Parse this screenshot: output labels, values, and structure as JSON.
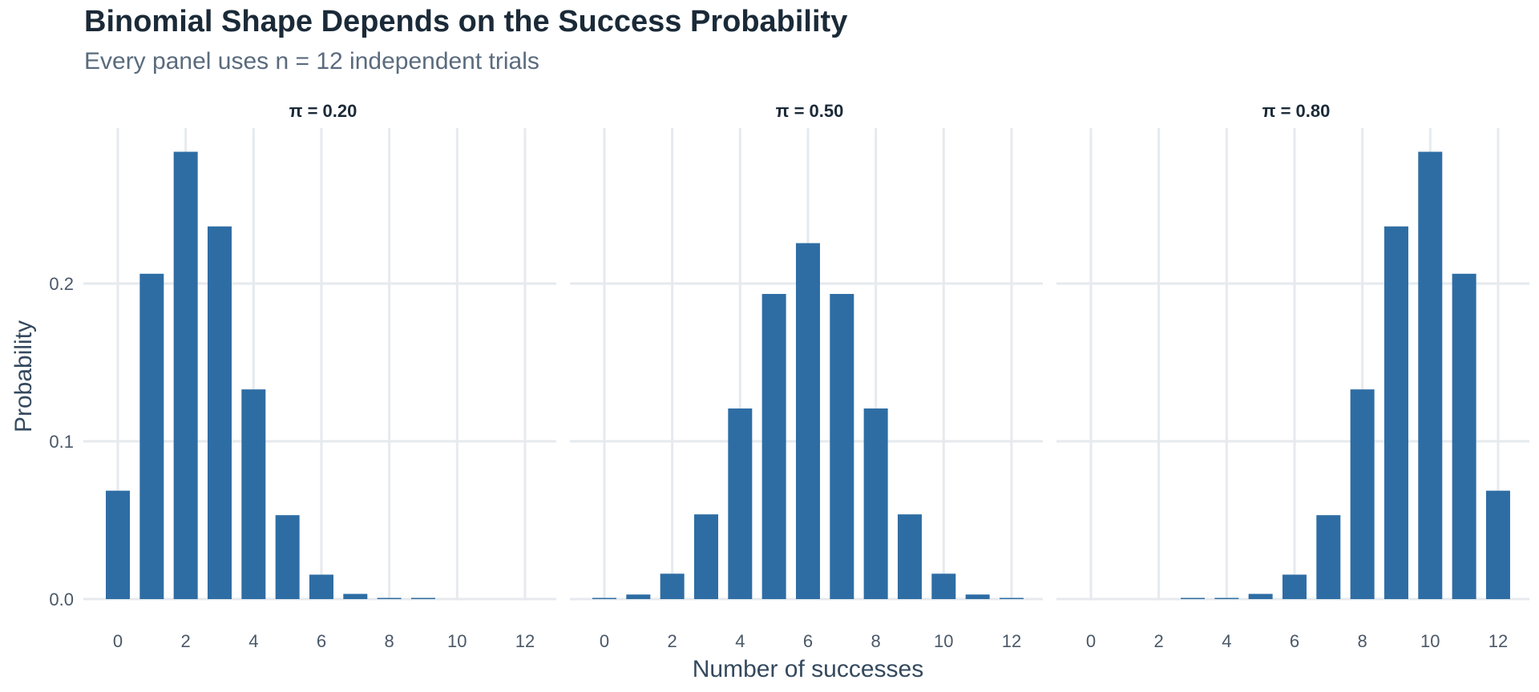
{
  "chart_data": {
    "type": "bar",
    "title": "Binomial Shape Depends on the Success Probability",
    "subtitle": "Every panel uses n = 12 independent trials",
    "xlabel": "Number of successes",
    "ylabel": "Probability",
    "x_ticks": [
      "0",
      "2",
      "4",
      "6",
      "8",
      "10",
      "12"
    ],
    "y_ticks": [
      "0.0",
      "0.1",
      "0.2"
    ],
    "ylim": [
      0,
      0.285
    ],
    "grid": true,
    "bar_color": "#2e6da4",
    "categories": [
      0,
      1,
      2,
      3,
      4,
      5,
      6,
      7,
      8,
      9,
      10,
      11,
      12
    ],
    "panels": [
      {
        "label": "π = 0.20",
        "values": [
          0.0687,
          0.2062,
          0.2835,
          0.2362,
          0.1329,
          0.0532,
          0.0155,
          0.0033,
          0.0005,
          0.0001,
          0.0,
          0.0,
          0.0
        ]
      },
      {
        "label": "π = 0.50",
        "values": [
          0.0002,
          0.0029,
          0.0161,
          0.0537,
          0.1208,
          0.1934,
          0.2256,
          0.1934,
          0.1208,
          0.0537,
          0.0161,
          0.0029,
          0.0002
        ]
      },
      {
        "label": "π = 0.80",
        "values": [
          0.0,
          0.0,
          0.0,
          0.0001,
          0.0005,
          0.0033,
          0.0155,
          0.0532,
          0.1329,
          0.2362,
          0.2835,
          0.2062,
          0.0687
        ]
      }
    ]
  }
}
